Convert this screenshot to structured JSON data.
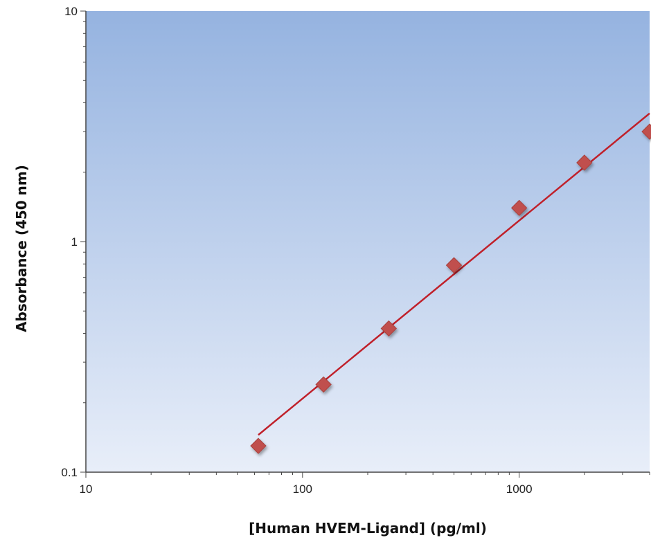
{
  "chart_data": {
    "type": "scatter",
    "title": "",
    "xlabel": "[Human HVEM-Ligand] (pg/ml)",
    "ylabel": "Absorbance (450 nm)",
    "xscale": "log",
    "yscale": "log",
    "xlim": [
      10,
      4000
    ],
    "ylim": [
      0.1,
      10
    ],
    "x_ticks": [
      10,
      100,
      1000
    ],
    "x_tick_labels": [
      "10",
      "100",
      "1000"
    ],
    "y_ticks": [
      0.1,
      1,
      10
    ],
    "y_tick_labels": [
      "0.1",
      "1",
      "10"
    ],
    "grid": false,
    "legend": "none",
    "series": [
      {
        "marker": "diamond",
        "x": [
          62.5,
          125,
          250,
          500,
          1000,
          2000,
          4000
        ],
        "y": [
          0.13,
          0.24,
          0.42,
          0.79,
          1.4,
          2.2,
          3.0
        ]
      }
    ],
    "fit_line": {
      "type": "log-log linear fit",
      "x": [
        62.5,
        4000
      ],
      "y": [
        0.145,
        3.6
      ]
    },
    "colors": {
      "marker": "#c0504d",
      "fit_line": "#c0202a",
      "plot_bg_top": "#95b3e0",
      "plot_bg_bottom": "#e8eef9"
    }
  }
}
